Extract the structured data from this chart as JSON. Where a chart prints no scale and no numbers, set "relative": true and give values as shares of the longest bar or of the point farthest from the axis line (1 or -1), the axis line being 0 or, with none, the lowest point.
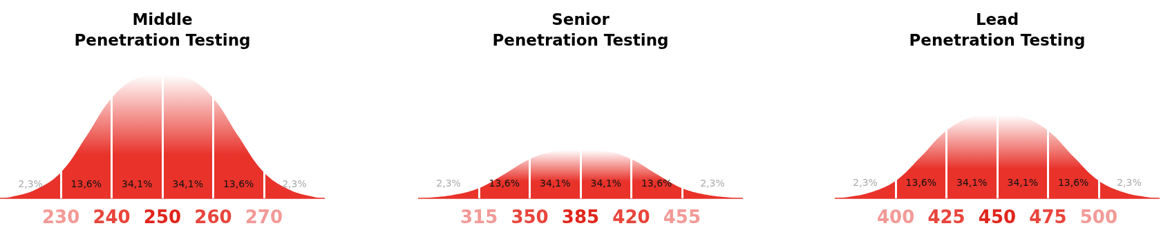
{
  "chart_data": [
    {
      "type": "area",
      "title": "Middle\nPenetration Testing",
      "relative": true,
      "color": "#e8322a",
      "x": [
        218,
        220,
        225,
        230,
        235,
        240,
        245,
        250,
        255,
        260,
        265,
        270,
        275,
        280,
        282
      ],
      "values": [
        0,
        0.01,
        0.07,
        0.21,
        0.5,
        0.81,
        0.97,
        1,
        0.97,
        0.81,
        0.5,
        0.21,
        0.07,
        0.01,
        0
      ],
      "xlim": [
        218,
        282
      ],
      "xticks": [
        230,
        240,
        250,
        260,
        270
      ],
      "ref_lines": [
        {
          "axis": "x",
          "value": 230,
          "color": "#ffffff"
        },
        {
          "axis": "x",
          "value": 240,
          "color": "#ffffff"
        },
        {
          "axis": "x",
          "value": 250,
          "color": "#ffffff"
        },
        {
          "axis": "x",
          "value": 260,
          "color": "#ffffff"
        },
        {
          "axis": "x",
          "value": 270,
          "color": "#ffffff"
        }
      ],
      "annotations": [
        "2,3%",
        "13,6%",
        "34,1%",
        "34,1%",
        "13,6%",
        "2,3%"
      ]
    },
    {
      "type": "area",
      "title": "Senior\nPenetration Testing",
      "relative": true,
      "color": "#e8322a",
      "x": [
        273,
        280,
        297.5,
        315,
        332.5,
        350,
        367.5,
        385,
        402.5,
        420,
        437.5,
        455,
        472.5,
        490,
        497
      ],
      "values": [
        0,
        0.01,
        0.07,
        0.21,
        0.5,
        0.81,
        0.97,
        1,
        0.97,
        0.81,
        0.5,
        0.21,
        0.07,
        0.01,
        0
      ],
      "xlim": [
        273,
        497
      ],
      "xticks": [
        315,
        350,
        385,
        420,
        455
      ],
      "ref_lines": [
        {
          "axis": "x",
          "value": 315,
          "color": "#ffffff"
        },
        {
          "axis": "x",
          "value": 350,
          "color": "#ffffff"
        },
        {
          "axis": "x",
          "value": 385,
          "color": "#ffffff"
        },
        {
          "axis": "x",
          "value": 420,
          "color": "#ffffff"
        },
        {
          "axis": "x",
          "value": 455,
          "color": "#ffffff"
        }
      ],
      "annotations": [
        "2,3%",
        "13,6%",
        "34,1%",
        "34,1%",
        "13,6%",
        "2,3%"
      ]
    },
    {
      "type": "area",
      "title": "Lead\nPenetration Testing",
      "relative": true,
      "color": "#e8322a",
      "x": [
        370,
        375,
        387.5,
        400,
        412.5,
        425,
        437.5,
        450,
        462.5,
        475,
        487.5,
        500,
        512.5,
        525,
        530
      ],
      "values": [
        0,
        0.01,
        0.07,
        0.21,
        0.5,
        0.81,
        0.97,
        1,
        0.97,
        0.81,
        0.5,
        0.21,
        0.07,
        0.01,
        0
      ],
      "xlim": [
        370,
        530
      ],
      "xticks": [
        400,
        425,
        450,
        475,
        500
      ],
      "ref_lines": [
        {
          "axis": "x",
          "value": 400,
          "color": "#ffffff"
        },
        {
          "axis": "x",
          "value": 425,
          "color": "#ffffff"
        },
        {
          "axis": "x",
          "value": 450,
          "color": "#ffffff"
        },
        {
          "axis": "x",
          "value": 475,
          "color": "#ffffff"
        },
        {
          "axis": "x",
          "value": 500,
          "color": "#ffffff"
        }
      ],
      "annotations": [
        "2,3%",
        "13,6%",
        "34,1%",
        "34,1%",
        "13,6%",
        "2,3%"
      ]
    }
  ]
}
